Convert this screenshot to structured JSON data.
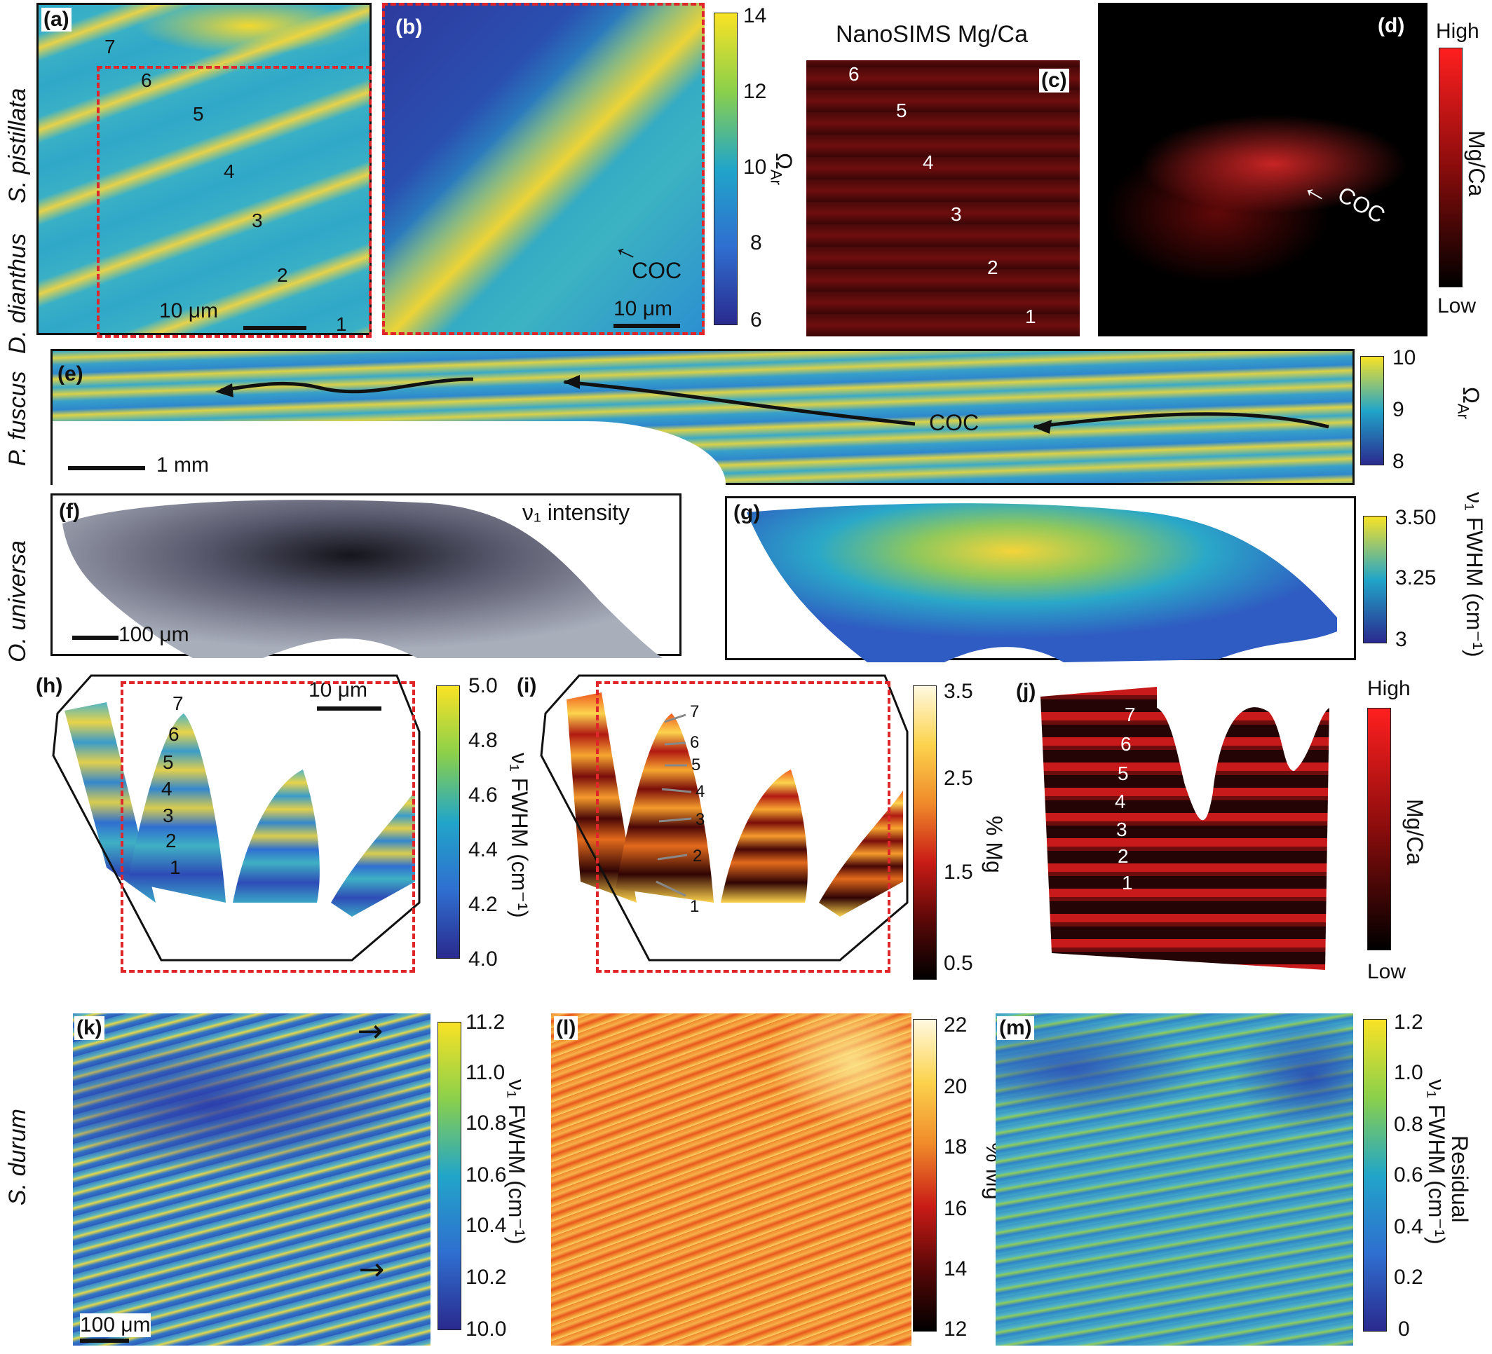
{
  "species": {
    "row1": "S. pistillata",
    "row2": "D. dianthus",
    "row3": "P. fuscus",
    "row4": "O. universa",
    "row5": "S. durum"
  },
  "panels": {
    "a": "(a)",
    "b": "(b)",
    "c": "(c)",
    "d": "(d)",
    "e": "(e)",
    "f": "(f)",
    "g": "(g)",
    "h": "(h)",
    "i": "(i)",
    "j": "(j)",
    "k": "(k)",
    "l": "(l)",
    "m": "(m)"
  },
  "nanosims_title": "NanoSIMS Mg/Ca",
  "intensity_title": "ν₁ intensity",
  "coc": "COC",
  "scalebars": {
    "a": "10 μm",
    "b": "10 μm",
    "e": "1 mm",
    "f": "100 μm",
    "h": "10 μm",
    "k": "100 μm"
  },
  "band_numbers": {
    "a": [
      "7",
      "6",
      "5",
      "4",
      "3",
      "2",
      "1"
    ],
    "c": [
      "6",
      "5",
      "4",
      "3",
      "2",
      "1"
    ],
    "h": [
      "7",
      "6",
      "5",
      "4",
      "3",
      "2",
      "1"
    ],
    "i": [
      "7",
      "6",
      "5",
      "4",
      "3",
      "2",
      "1"
    ],
    "j": [
      "7",
      "6",
      "5",
      "4",
      "3",
      "2",
      "1"
    ]
  },
  "colorbars": {
    "b": {
      "ticks": [
        "14",
        "12",
        "10",
        "8",
        "6"
      ],
      "label": "Ω",
      "label_sub": "Ar"
    },
    "d": {
      "top": "High",
      "bottom": "Low",
      "label": "Mg/Ca"
    },
    "e": {
      "ticks": [
        "10",
        "9",
        "8"
      ],
      "label": "Ω",
      "label_sub": "Ar"
    },
    "g": {
      "ticks": [
        "3.50",
        "3.25",
        "3"
      ],
      "label": "ν₁ FWHM (cm⁻¹)"
    },
    "h": {
      "ticks": [
        "5.0",
        "4.8",
        "4.6",
        "4.4",
        "4.2",
        "4.0"
      ],
      "label": "ν₁ FWHM (cm⁻¹)"
    },
    "i": {
      "ticks": [
        "3.5",
        "2.5",
        "1.5",
        "0.5"
      ],
      "label": "% Mg"
    },
    "j": {
      "top": "High",
      "bottom": "Low",
      "label": "Mg/Ca"
    },
    "k": {
      "ticks": [
        "11.2",
        "11.0",
        "10.8",
        "10.6",
        "10.4",
        "10.2",
        "10.0"
      ],
      "label": "ν₁ FWHM (cm⁻¹)"
    },
    "l": {
      "ticks": [
        "22",
        "20",
        "18",
        "16",
        "14",
        "12"
      ],
      "label": "% Mg"
    },
    "m": {
      "ticks": [
        "1.2",
        "1.0",
        "0.8",
        "0.6",
        "0.4",
        "0.2",
        "0"
      ],
      "label": "ν₁ FWHM (cm⁻¹)",
      "label2": "Residual"
    }
  },
  "colors": {
    "parula_top": "#f9e225",
    "parula_mid": "#21a5c9",
    "parula_low": "#2a2a8e",
    "red_high": "#ff1f1f",
    "dash": "#e0262a"
  }
}
